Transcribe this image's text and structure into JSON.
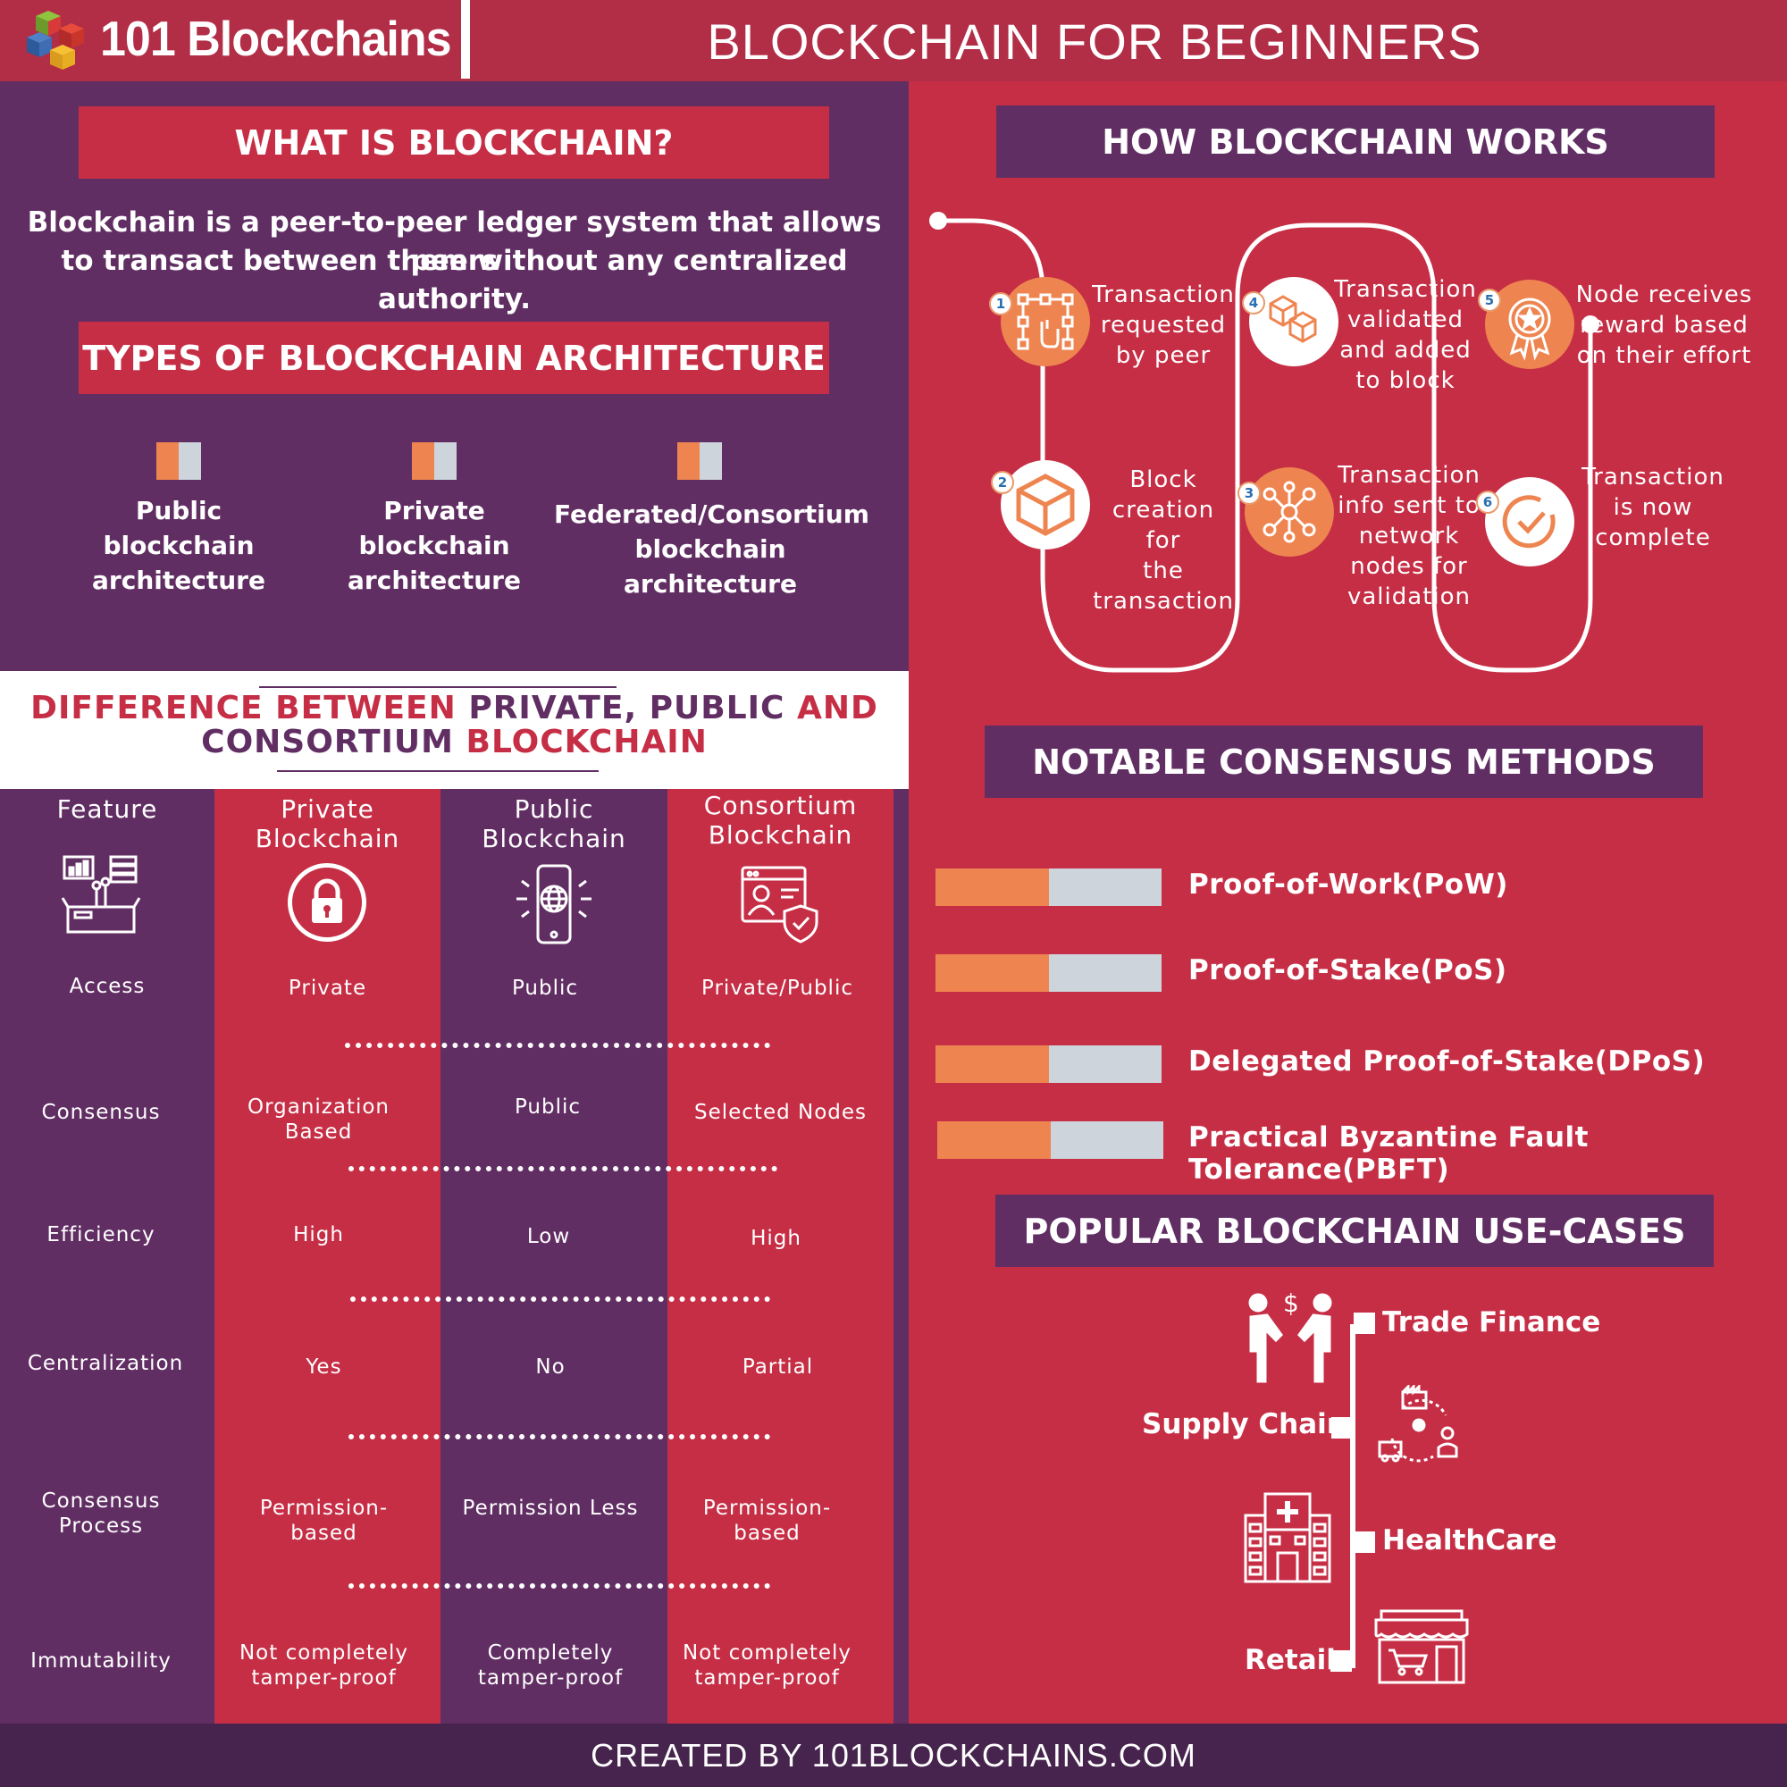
{
  "header": {
    "brand": "101 Blockchains",
    "title": "BLOCKCHAIN FOR BEGINNERS"
  },
  "what_is": {
    "heading": "WHAT IS BLOCKCHAIN?",
    "line1": "Blockchain is a peer-to-peer ledger system that allows peers",
    "line2": "to transact between them without any centralized authority."
  },
  "types": {
    "heading": "TYPES OF BLOCKCHAIN ARCHITECTURE",
    "items": [
      {
        "line1": "Public",
        "line2": "blockchain",
        "line3": "architecture"
      },
      {
        "line1": "Private",
        "line2": "blockchain",
        "line3": "architecture"
      },
      {
        "line1": "Federated/Consortium",
        "line2": "blockchain",
        "line3": "architecture"
      }
    ]
  },
  "difference": {
    "title_part1": "DIFFERENCE",
    "title_part2": "BETWEEN",
    "title_part3": "PRIVATE, PUBLIC",
    "title_part4": "AND",
    "title_part5": "CONSORTIUM",
    "title_part6": "BLOCKCHAIN",
    "headers": {
      "feature": "Feature",
      "private_1": "Private",
      "private_2": "Blockchain",
      "public_1": "Public",
      "public_2": "Blockchain",
      "cons_1": "Consortium",
      "cons_2": "Blockchain"
    },
    "rows": [
      {
        "feature_1": "Access",
        "feature_2": "",
        "private_1": "Private",
        "private_2": "",
        "public_1": "Public",
        "public_2": "",
        "cons_1": "Private/Public",
        "cons_2": ""
      },
      {
        "feature_1": "Consensus",
        "feature_2": "",
        "private_1": "Organization",
        "private_2": "Based",
        "public_1": "Public",
        "public_2": "",
        "cons_1": "Selected Nodes",
        "cons_2": ""
      },
      {
        "feature_1": "Efficiency",
        "feature_2": "",
        "private_1": "High",
        "private_2": "",
        "public_1": "Low",
        "public_2": "",
        "cons_1": "High",
        "cons_2": ""
      },
      {
        "feature_1": "Centralization",
        "feature_2": "",
        "private_1": "Yes",
        "private_2": "",
        "public_1": "No",
        "public_2": "",
        "cons_1": "Partial",
        "cons_2": ""
      },
      {
        "feature_1": "Consensus",
        "feature_2": "Process",
        "private_1": "Permission-",
        "private_2": "based",
        "public_1": "Permission Less",
        "public_2": "",
        "cons_1": "Permission-",
        "cons_2": "based"
      },
      {
        "feature_1": "Immutability",
        "feature_2": "",
        "private_1": "Not completely",
        "private_2": "tamper-proof",
        "public_1": "Completely",
        "public_2": "tamper-proof",
        "cons_1": "Not completely",
        "cons_2": "tamper-proof"
      }
    ]
  },
  "how_works": {
    "heading": "HOW BLOCKCHAIN WORKS",
    "steps": [
      {
        "num": "1",
        "line1": "Transaction",
        "line2": "requested",
        "line3": "by peer",
        "line4": "",
        "line5": ""
      },
      {
        "num": "2",
        "line1": "Block",
        "line2": "creation for",
        "line3": "the",
        "line4": "transaction",
        "line5": ""
      },
      {
        "num": "3",
        "line1": "Transaction",
        "line2": "info sent to",
        "line3": "network",
        "line4": "nodes for",
        "line5": "validation"
      },
      {
        "num": "4",
        "line1": "Transaction",
        "line2": "validated",
        "line3": "and added",
        "line4": "to block",
        "line5": ""
      },
      {
        "num": "5",
        "line1": "Node receives",
        "line2": "reward based",
        "line3": "on their effort",
        "line4": "",
        "line5": ""
      },
      {
        "num": "6",
        "line1": "Transaction",
        "line2": "is now",
        "line3": "complete",
        "line4": "",
        "line5": ""
      }
    ]
  },
  "consensus": {
    "heading": "NOTABLE CONSENSUS METHODS",
    "items": [
      "Proof-of-Work(PoW)",
      "Proof-of-Stake(PoS)",
      "Delegated Proof-of-Stake(DPoS)",
      "Practical Byzantine Fault Tolerance(PBFT)"
    ]
  },
  "use_cases": {
    "heading": "POPULAR BLOCKCHAIN USE-CASES",
    "items": [
      "Trade Finance",
      "Supply Chain",
      "HealthCare",
      "Retail"
    ]
  },
  "icons": {
    "logo": "cube-cluster-logo",
    "feature": "feature-box-icon",
    "private": "lock-icon",
    "public": "globe-phone-icon",
    "consortium": "user-shield-icon",
    "trade": "handshake-dollar-icon",
    "supply": "factory-truck-icon",
    "health": "hospital-icon",
    "retail": "shop-cart-icon"
  },
  "colors": {
    "purple": "#612e63",
    "red": "#c62e45",
    "orange": "#ee8550",
    "gray": "#cdd4dc",
    "footer": "#46244d"
  },
  "footer": {
    "text": "CREATED BY 101BLOCKCHAINS.COM"
  }
}
